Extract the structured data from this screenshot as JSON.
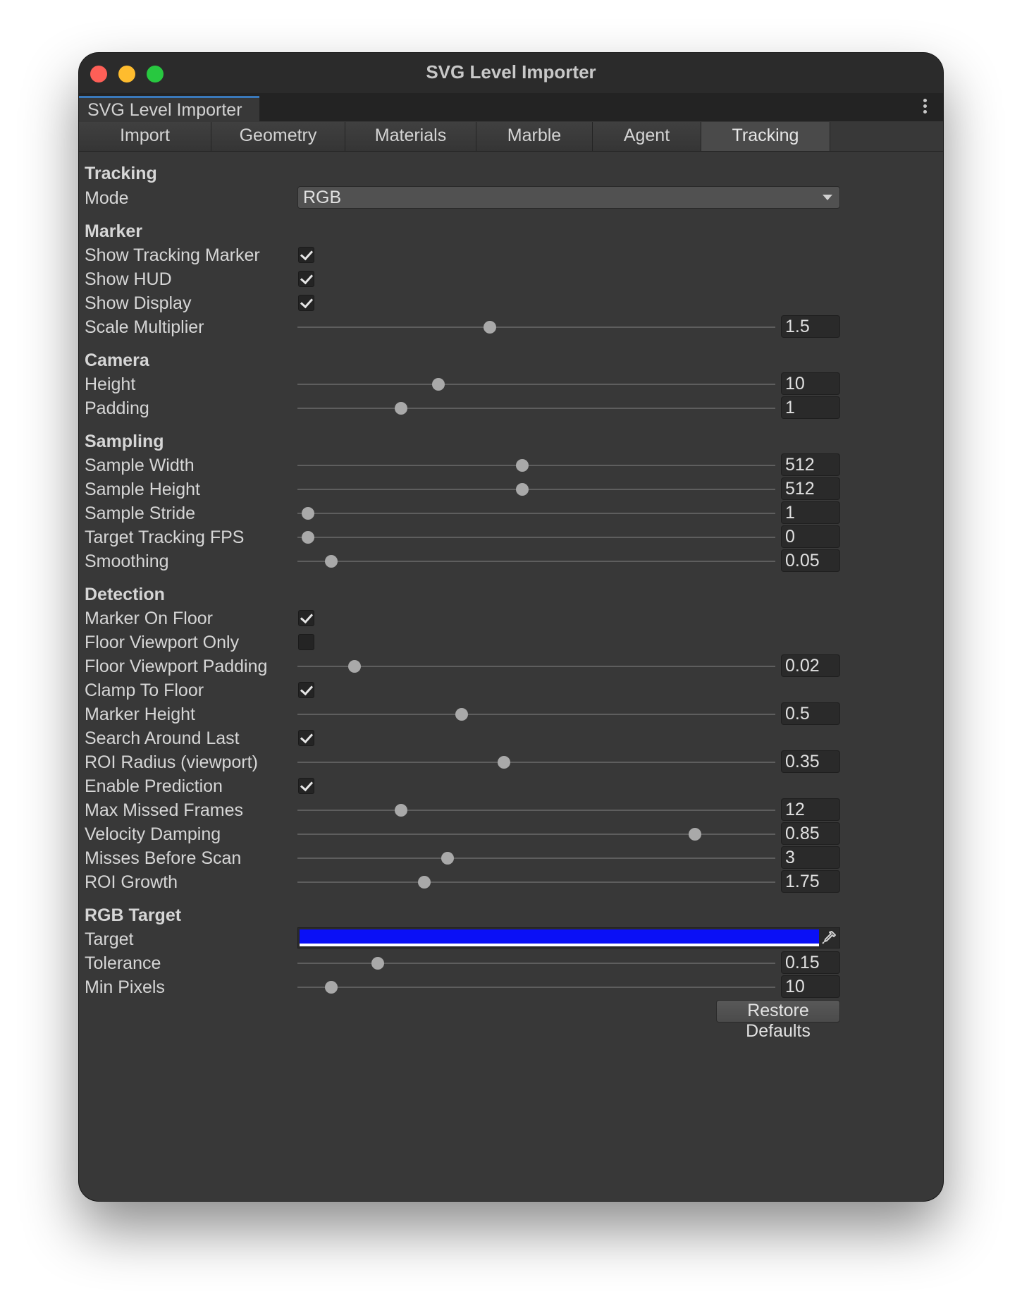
{
  "window": {
    "title": "SVG Level Importer",
    "doc_tab": "SVG Level Importer"
  },
  "tabs": [
    {
      "label": "Import"
    },
    {
      "label": "Geometry"
    },
    {
      "label": "Materials"
    },
    {
      "label": "Marble"
    },
    {
      "label": "Agent"
    },
    {
      "label": "Tracking",
      "active": true
    }
  ],
  "tracking": {
    "title": "Tracking",
    "mode_label": "Mode",
    "mode_value": "RGB"
  },
  "marker": {
    "title": "Marker",
    "show_tracking_marker": {
      "label": "Show Tracking Marker",
      "checked": true
    },
    "show_hud": {
      "label": "Show HUD",
      "checked": true
    },
    "show_display": {
      "label": "Show Display",
      "checked": true
    },
    "scale_multiplier": {
      "label": "Scale Multiplier",
      "value": "1.5",
      "fraction": 0.4
    }
  },
  "camera": {
    "title": "Camera",
    "height": {
      "label": "Height",
      "value": "10",
      "fraction": 0.29
    },
    "padding": {
      "label": "Padding",
      "value": "1",
      "fraction": 0.21
    }
  },
  "sampling": {
    "title": "Sampling",
    "sample_width": {
      "label": "Sample Width",
      "value": "512",
      "fraction": 0.47
    },
    "sample_height": {
      "label": "Sample Height",
      "value": "512",
      "fraction": 0.47
    },
    "sample_stride": {
      "label": "Sample Stride",
      "value": "1",
      "fraction": 0.01
    },
    "target_fps": {
      "label": "Target Tracking FPS",
      "value": "0",
      "fraction": 0.01
    },
    "smoothing": {
      "label": "Smoothing",
      "value": "0.05",
      "fraction": 0.06
    }
  },
  "detection": {
    "title": "Detection",
    "marker_on_floor": {
      "label": "Marker On Floor",
      "checked": true
    },
    "floor_viewport_only": {
      "label": "Floor Viewport Only",
      "checked": false
    },
    "floor_viewport_padding": {
      "label": "Floor Viewport Padding",
      "value": "0.02",
      "fraction": 0.11
    },
    "clamp_to_floor": {
      "label": "Clamp To Floor",
      "checked": true
    },
    "marker_height": {
      "label": "Marker Height",
      "value": "0.5",
      "fraction": 0.34
    },
    "search_around_last": {
      "label": "Search Around Last",
      "checked": true
    },
    "roi_radius": {
      "label": "ROI Radius (viewport)",
      "value": "0.35",
      "fraction": 0.43
    },
    "enable_prediction": {
      "label": "Enable Prediction",
      "checked": true
    },
    "max_missed_frames": {
      "label": "Max Missed Frames",
      "value": "12",
      "fraction": 0.21
    },
    "velocity_damping": {
      "label": "Velocity Damping",
      "value": "0.85",
      "fraction": 0.84
    },
    "misses_before_scan": {
      "label": "Misses Before Scan",
      "value": "3",
      "fraction": 0.31
    },
    "roi_growth": {
      "label": "ROI Growth",
      "value": "1.75",
      "fraction": 0.26
    }
  },
  "rgb_target": {
    "title": "RGB Target",
    "target": {
      "label": "Target",
      "color": "#0a10f6"
    },
    "tolerance": {
      "label": "Tolerance",
      "value": "0.15",
      "fraction": 0.16
    },
    "min_pixels": {
      "label": "Min Pixels",
      "value": "10",
      "fraction": 0.06
    }
  },
  "restore_defaults": "Restore Defaults",
  "icons": {
    "eyedropper": "eyedropper-icon",
    "kebab": "more-options-icon",
    "dropdown": "chevron-down-icon"
  }
}
